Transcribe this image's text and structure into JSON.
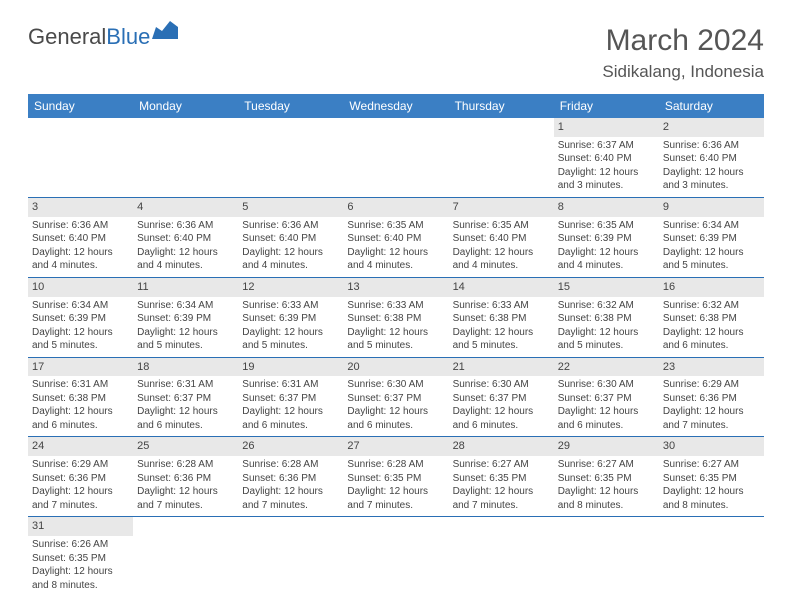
{
  "logo": {
    "part1": "General",
    "part2": "Blue"
  },
  "title": "March 2024",
  "location": "Sidikalang, Indonesia",
  "colors": {
    "header_bg": "#3b7fc4",
    "header_fg": "#ffffff",
    "row_border": "#2a6fb5",
    "daynum_bg": "#e8e8e8",
    "text": "#444444",
    "logo_gray": "#4a4a4a",
    "logo_blue": "#2a6fb5"
  },
  "weekdays": [
    "Sunday",
    "Monday",
    "Tuesday",
    "Wednesday",
    "Thursday",
    "Friday",
    "Saturday"
  ],
  "weeks": [
    [
      {
        "day": "",
        "lines": []
      },
      {
        "day": "",
        "lines": []
      },
      {
        "day": "",
        "lines": []
      },
      {
        "day": "",
        "lines": []
      },
      {
        "day": "",
        "lines": []
      },
      {
        "day": "1",
        "lines": [
          "Sunrise: 6:37 AM",
          "Sunset: 6:40 PM",
          "Daylight: 12 hours and 3 minutes."
        ]
      },
      {
        "day": "2",
        "lines": [
          "Sunrise: 6:36 AM",
          "Sunset: 6:40 PM",
          "Daylight: 12 hours and 3 minutes."
        ]
      }
    ],
    [
      {
        "day": "3",
        "lines": [
          "Sunrise: 6:36 AM",
          "Sunset: 6:40 PM",
          "Daylight: 12 hours and 4 minutes."
        ]
      },
      {
        "day": "4",
        "lines": [
          "Sunrise: 6:36 AM",
          "Sunset: 6:40 PM",
          "Daylight: 12 hours and 4 minutes."
        ]
      },
      {
        "day": "5",
        "lines": [
          "Sunrise: 6:36 AM",
          "Sunset: 6:40 PM",
          "Daylight: 12 hours and 4 minutes."
        ]
      },
      {
        "day": "6",
        "lines": [
          "Sunrise: 6:35 AM",
          "Sunset: 6:40 PM",
          "Daylight: 12 hours and 4 minutes."
        ]
      },
      {
        "day": "7",
        "lines": [
          "Sunrise: 6:35 AM",
          "Sunset: 6:40 PM",
          "Daylight: 12 hours and 4 minutes."
        ]
      },
      {
        "day": "8",
        "lines": [
          "Sunrise: 6:35 AM",
          "Sunset: 6:39 PM",
          "Daylight: 12 hours and 4 minutes."
        ]
      },
      {
        "day": "9",
        "lines": [
          "Sunrise: 6:34 AM",
          "Sunset: 6:39 PM",
          "Daylight: 12 hours and 5 minutes."
        ]
      }
    ],
    [
      {
        "day": "10",
        "lines": [
          "Sunrise: 6:34 AM",
          "Sunset: 6:39 PM",
          "Daylight: 12 hours and 5 minutes."
        ]
      },
      {
        "day": "11",
        "lines": [
          "Sunrise: 6:34 AM",
          "Sunset: 6:39 PM",
          "Daylight: 12 hours and 5 minutes."
        ]
      },
      {
        "day": "12",
        "lines": [
          "Sunrise: 6:33 AM",
          "Sunset: 6:39 PM",
          "Daylight: 12 hours and 5 minutes."
        ]
      },
      {
        "day": "13",
        "lines": [
          "Sunrise: 6:33 AM",
          "Sunset: 6:38 PM",
          "Daylight: 12 hours and 5 minutes."
        ]
      },
      {
        "day": "14",
        "lines": [
          "Sunrise: 6:33 AM",
          "Sunset: 6:38 PM",
          "Daylight: 12 hours and 5 minutes."
        ]
      },
      {
        "day": "15",
        "lines": [
          "Sunrise: 6:32 AM",
          "Sunset: 6:38 PM",
          "Daylight: 12 hours and 5 minutes."
        ]
      },
      {
        "day": "16",
        "lines": [
          "Sunrise: 6:32 AM",
          "Sunset: 6:38 PM",
          "Daylight: 12 hours and 6 minutes."
        ]
      }
    ],
    [
      {
        "day": "17",
        "lines": [
          "Sunrise: 6:31 AM",
          "Sunset: 6:38 PM",
          "Daylight: 12 hours and 6 minutes."
        ]
      },
      {
        "day": "18",
        "lines": [
          "Sunrise: 6:31 AM",
          "Sunset: 6:37 PM",
          "Daylight: 12 hours and 6 minutes."
        ]
      },
      {
        "day": "19",
        "lines": [
          "Sunrise: 6:31 AM",
          "Sunset: 6:37 PM",
          "Daylight: 12 hours and 6 minutes."
        ]
      },
      {
        "day": "20",
        "lines": [
          "Sunrise: 6:30 AM",
          "Sunset: 6:37 PM",
          "Daylight: 12 hours and 6 minutes."
        ]
      },
      {
        "day": "21",
        "lines": [
          "Sunrise: 6:30 AM",
          "Sunset: 6:37 PM",
          "Daylight: 12 hours and 6 minutes."
        ]
      },
      {
        "day": "22",
        "lines": [
          "Sunrise: 6:30 AM",
          "Sunset: 6:37 PM",
          "Daylight: 12 hours and 6 minutes."
        ]
      },
      {
        "day": "23",
        "lines": [
          "Sunrise: 6:29 AM",
          "Sunset: 6:36 PM",
          "Daylight: 12 hours and 7 minutes."
        ]
      }
    ],
    [
      {
        "day": "24",
        "lines": [
          "Sunrise: 6:29 AM",
          "Sunset: 6:36 PM",
          "Daylight: 12 hours and 7 minutes."
        ]
      },
      {
        "day": "25",
        "lines": [
          "Sunrise: 6:28 AM",
          "Sunset: 6:36 PM",
          "Daylight: 12 hours and 7 minutes."
        ]
      },
      {
        "day": "26",
        "lines": [
          "Sunrise: 6:28 AM",
          "Sunset: 6:36 PM",
          "Daylight: 12 hours and 7 minutes."
        ]
      },
      {
        "day": "27",
        "lines": [
          "Sunrise: 6:28 AM",
          "Sunset: 6:35 PM",
          "Daylight: 12 hours and 7 minutes."
        ]
      },
      {
        "day": "28",
        "lines": [
          "Sunrise: 6:27 AM",
          "Sunset: 6:35 PM",
          "Daylight: 12 hours and 7 minutes."
        ]
      },
      {
        "day": "29",
        "lines": [
          "Sunrise: 6:27 AM",
          "Sunset: 6:35 PM",
          "Daylight: 12 hours and 8 minutes."
        ]
      },
      {
        "day": "30",
        "lines": [
          "Sunrise: 6:27 AM",
          "Sunset: 6:35 PM",
          "Daylight: 12 hours and 8 minutes."
        ]
      }
    ],
    [
      {
        "day": "31",
        "lines": [
          "Sunrise: 6:26 AM",
          "Sunset: 6:35 PM",
          "Daylight: 12 hours and 8 minutes."
        ]
      },
      {
        "day": "",
        "lines": []
      },
      {
        "day": "",
        "lines": []
      },
      {
        "day": "",
        "lines": []
      },
      {
        "day": "",
        "lines": []
      },
      {
        "day": "",
        "lines": []
      },
      {
        "day": "",
        "lines": []
      }
    ]
  ]
}
